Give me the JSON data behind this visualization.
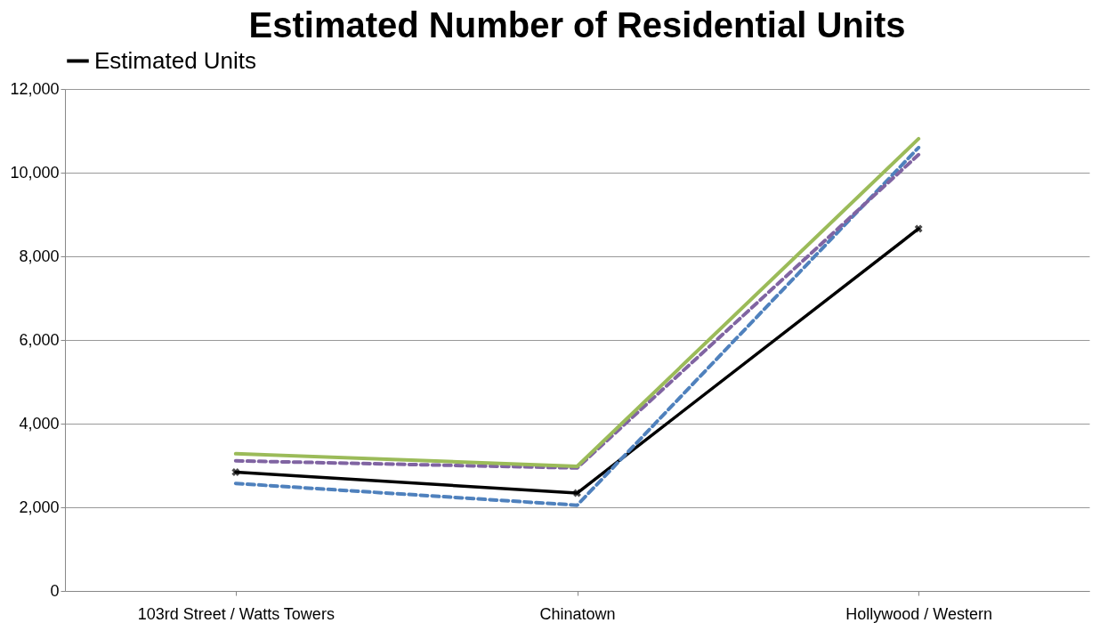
{
  "chart_data": {
    "type": "line",
    "title": "Estimated Number of Residential Units",
    "categories": [
      "103rd Street / Watts Towers",
      "Chinatown",
      "Hollywood / Western"
    ],
    "series": [
      {
        "name": "Estimated Units",
        "color": "#000000",
        "values": [
          2840,
          2340,
          8660
        ],
        "marker": "cross",
        "line_style": "solid"
      },
      {
        "color": "#4f81bd",
        "values": [
          2570,
          2050,
          10600
        ],
        "line_style": "dashed"
      },
      {
        "color": "#8064a2",
        "values": [
          3110,
          2940,
          10430
        ],
        "line_style": "dashed"
      },
      {
        "color": "#9bbb59",
        "values": [
          3280,
          2980,
          10810
        ],
        "line_style": "solid"
      }
    ],
    "ylim": [
      0,
      12000
    ],
    "yticks": [
      {
        "value": 0,
        "label": "0"
      },
      {
        "value": 2000,
        "label": "2,000"
      },
      {
        "value": 4000,
        "label": "4,000"
      },
      {
        "value": 6000,
        "label": "6,000"
      },
      {
        "value": 8000,
        "label": "8,000"
      },
      {
        "value": 10000,
        "label": "10,000"
      },
      {
        "value": 12000,
        "label": "12,000"
      }
    ],
    "grid": "y",
    "legend": "top"
  }
}
